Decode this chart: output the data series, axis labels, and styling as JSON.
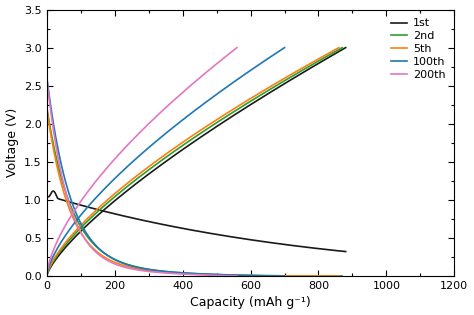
{
  "xlabel": "Capacity (mAh g⁻¹)",
  "ylabel": "Voltage (V)",
  "xlim": [
    0,
    1200
  ],
  "ylim": [
    0,
    3.5
  ],
  "xticks": [
    0,
    200,
    400,
    600,
    800,
    1000,
    1200
  ],
  "yticks": [
    0.0,
    0.5,
    1.0,
    1.5,
    2.0,
    2.5,
    3.0,
    3.5
  ],
  "legend_labels": [
    "1st",
    "2nd",
    "5th",
    "100th",
    "200th"
  ],
  "colors": [
    "#1a1a1a",
    "#2ca02c",
    "#ff7f0e",
    "#1f77b4",
    "#e377c2"
  ],
  "background_color": "#ffffff",
  "figsize": [
    4.74,
    3.15
  ],
  "dpi": 100
}
